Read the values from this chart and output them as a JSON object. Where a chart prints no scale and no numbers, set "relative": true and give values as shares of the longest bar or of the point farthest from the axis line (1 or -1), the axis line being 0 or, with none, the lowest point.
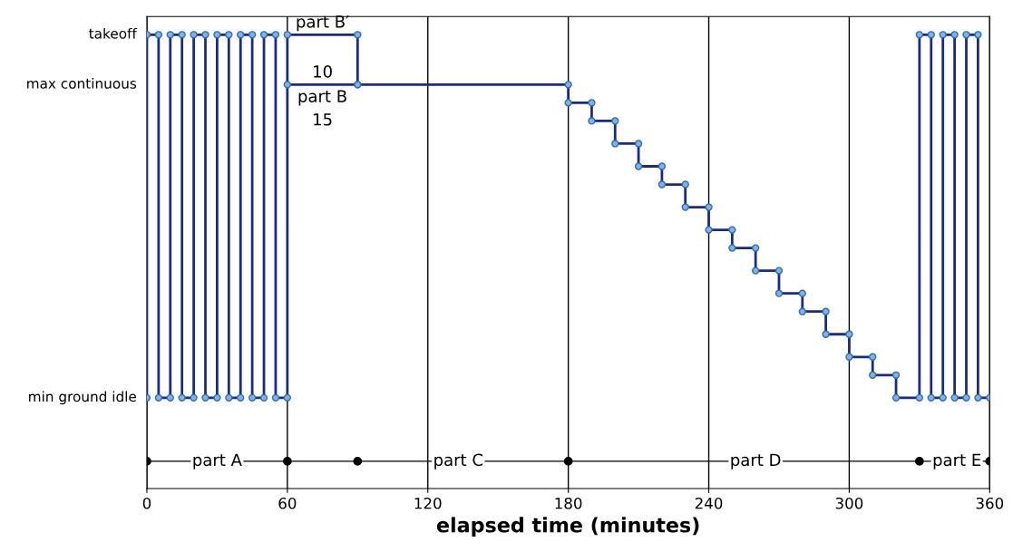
{
  "chart_data": {
    "type": "line",
    "relative": true,
    "xlabel": "elapsed time (minutes)",
    "xlim": [
      0,
      360
    ],
    "xticks": [
      0,
      60,
      120,
      180,
      240,
      300,
      360
    ],
    "grid": "x",
    "legend": false,
    "line_style": "solid",
    "series": [
      {
        "color": "#1a2a8c",
        "marker": "circle",
        "x": [
          0,
          0,
          5,
          5,
          10,
          10,
          15,
          15,
          20,
          20,
          25,
          25,
          30,
          30,
          35,
          35,
          40,
          40,
          45,
          45,
          50,
          50,
          55,
          55,
          60,
          60,
          90,
          90,
          180,
          180,
          190,
          190,
          200,
          200,
          210,
          210,
          220,
          220,
          230,
          230,
          240,
          240,
          250,
          250,
          260,
          260,
          270,
          270,
          280,
          280,
          290,
          290,
          300,
          300,
          310,
          310,
          320,
          320,
          330,
          330,
          335,
          335,
          340,
          340,
          345,
          345,
          350,
          350,
          355,
          355,
          360
        ],
        "values": [
          0.2,
          1,
          1,
          0.2,
          0.2,
          1,
          1,
          0.2,
          0.2,
          1,
          1,
          0.2,
          0.2,
          1,
          1,
          0.2,
          0.2,
          1,
          1,
          0.2,
          0.2,
          1,
          1,
          0.2,
          0.2,
          1,
          1,
          0.89,
          0.89,
          0.85,
          0.85,
          0.81,
          0.81,
          0.76,
          0.76,
          0.71,
          0.71,
          0.67,
          0.67,
          0.62,
          0.62,
          0.57,
          0.57,
          0.53,
          0.53,
          0.48,
          0.48,
          0.43,
          0.43,
          0.39,
          0.39,
          0.34,
          0.34,
          0.29,
          0.29,
          0.25,
          0.25,
          0.2,
          0.2,
          1,
          1,
          0.2,
          0.2,
          1,
          1,
          0.2,
          0.2,
          1,
          1,
          0.2,
          0.2
        ]
      },
      {
        "color": "#1a2a8c",
        "marker": "circle",
        "x": [
          60,
          90
        ],
        "values": [
          0.89,
          0.89
        ]
      },
      {
        "color": "#000000",
        "marker": "circle",
        "x": [
          0,
          60,
          90,
          180,
          330,
          360
        ],
        "values": [
          0.06,
          0.06,
          0.06,
          0.06,
          0.06,
          0.06
        ]
      }
    ],
    "annotations": [
      {
        "text": "part A",
        "x": 30,
        "y": 0.06
      },
      {
        "text": "part C",
        "x": 133,
        "y": 0.06
      },
      {
        "text": "part D",
        "x": 260,
        "y": 0.06
      },
      {
        "text": "part E",
        "x": 346,
        "y": 0.06
      },
      {
        "text": "takeoff",
        "x": 0,
        "y": 1
      },
      {
        "text": "max continuous",
        "x": 0,
        "y": 0.89
      },
      {
        "text": "min ground idle",
        "x": 0,
        "y": 0.2
      },
      {
        "text": "part B′",
        "x": 75,
        "y": 1
      },
      {
        "text": "10",
        "x": 75,
        "y": 0.89
      },
      {
        "text": "part B\n15",
        "x": 75,
        "y": 0.89
      }
    ]
  }
}
